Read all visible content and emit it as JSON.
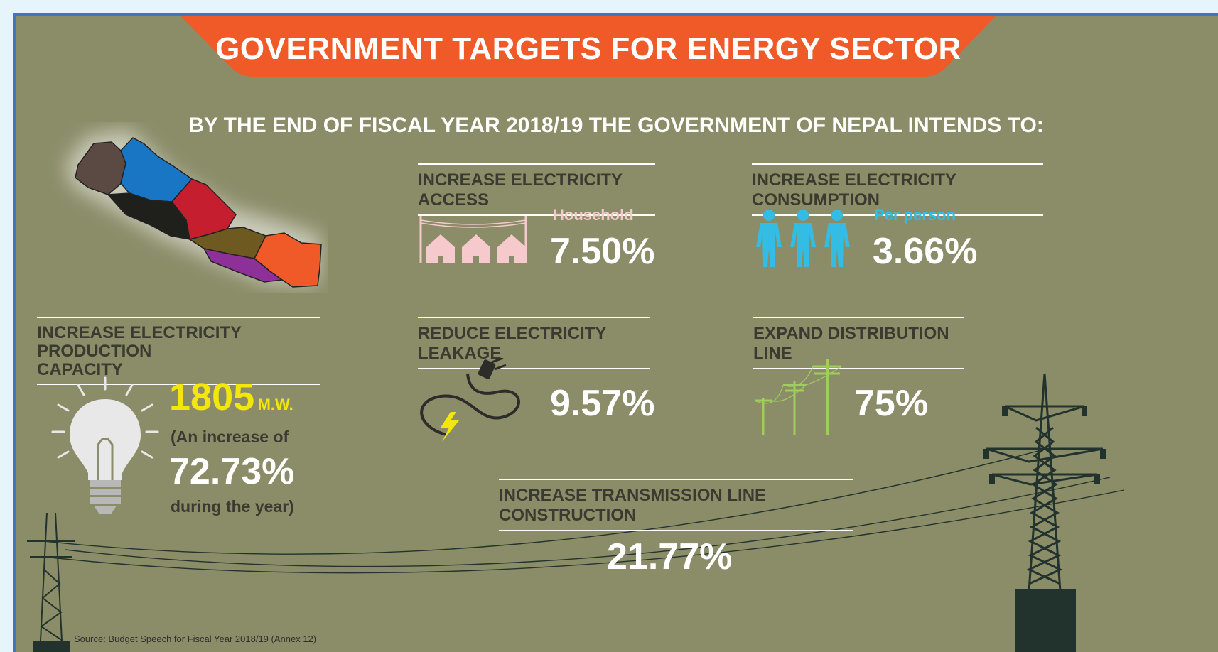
{
  "title": "GOVERNMENT TARGETS FOR ENERGY SECTOR",
  "subtitle": "BY THE END OF FISCAL YEAR 2018/19 THE GOVERNMENT OF NEPAL INTENDS TO:",
  "colors": {
    "banner": "#f05a28",
    "background": "#8b8c68",
    "frame_border": "#3b78c4",
    "yellow": "#f2e60c",
    "pink": "#f6c9cd",
    "cyan": "#33bde4",
    "green": "#9fce5a"
  },
  "targets": {
    "access": {
      "heading": "INCREASE ELECTRICITY ACCESS",
      "label": "Household",
      "value": "7.50%",
      "icon": "houses-icon"
    },
    "consumption": {
      "heading": "INCREASE ELECTRICITY CONSUMPTION",
      "label": "Per person",
      "value": "3.66%",
      "icon": "people-icon"
    },
    "production": {
      "heading_line1": "INCREASE ELECTRICITY PRODUCTION",
      "heading_line2": "CAPACITY",
      "value": "1805",
      "unit": "M.W.",
      "note1": "(An increase of",
      "increase": "72.73%",
      "note2": "during the year)",
      "icon": "light-bulb-icon"
    },
    "leakage": {
      "heading": "REDUCE ELECTRICITY LEAKAGE",
      "value": "9.57%",
      "icon": "plug-icon"
    },
    "distribution": {
      "heading": "EXPAND DISTRIBUTION LINE",
      "value": "75%",
      "icon": "utility-poles-icon"
    },
    "transmission": {
      "heading": "INCREASE TRANSMISSION LINE CONSTRUCTION",
      "value": "21.77%",
      "icon": "transmission-tower-icon"
    }
  },
  "source": "Source: Budget Speech for Fiscal Year 2018/19 (Annex 12)"
}
